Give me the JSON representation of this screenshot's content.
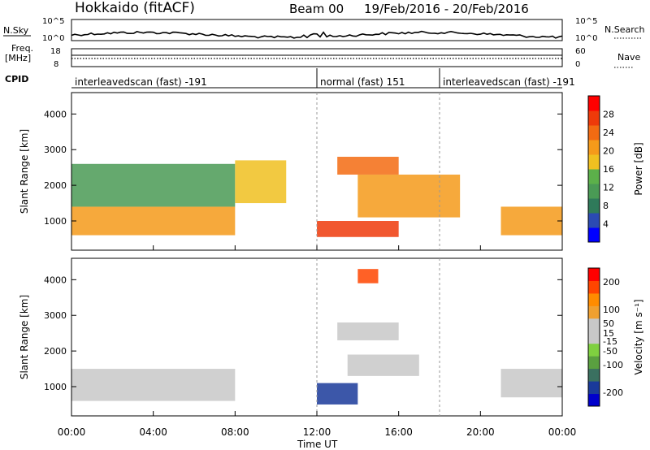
{
  "header": {
    "station": "Hokkaido (fitACF)",
    "beam": "Beam 00",
    "date_range": "19/Feb/2016 - 20/Feb/2016"
  },
  "top_panels": {
    "nsky_label": "N.Sky",
    "nsky_ticks": [
      "10^5",
      "10^0"
    ],
    "nsearch_label": "N.Search",
    "nsearch_ticks": [
      "10^5",
      "10^0"
    ],
    "freq_label": "Freq.",
    "freq_unit": "[MHz]",
    "freq_ticks": [
      "18",
      "8"
    ],
    "nave_label": "Nave",
    "nave_ticks": [
      "60",
      "0"
    ],
    "cpid_label": "CPID",
    "modes": [
      {
        "label": "interleavedscan (fast) -191",
        "start_hour": 0
      },
      {
        "label": "normal (fast) 151",
        "start_hour": 12
      },
      {
        "label": "interleavedscan (fast) -191",
        "start_hour": 18
      }
    ]
  },
  "colors": {
    "power_scale": [
      "#0000ff",
      "#2b4ab3",
      "#2f7a5a",
      "#4a9a55",
      "#5cb04a",
      "#f0c020",
      "#f59a1a",
      "#f36b12",
      "#ee3a0a",
      "#ff0000"
    ],
    "velocity_scale": [
      "#ff0000",
      "#ff4500",
      "#ff8c00",
      "#f0a030",
      "#c8c8c8",
      "#c8c8c8",
      "#7fd040",
      "#5aa040",
      "#3a7060",
      "#1a3a9a",
      "#0000cc"
    ]
  },
  "chart_data": [
    {
      "type": "heatmap",
      "xlabel": "Time UT",
      "ylabel": "Slant Range [km]",
      "x_ticks": [
        "00:00",
        "04:00",
        "08:00",
        "12:00",
        "16:00",
        "20:00",
        "00:00"
      ],
      "x_range_hours": [
        0,
        24
      ],
      "y_ticks": [
        1000,
        2000,
        3000,
        4000
      ],
      "ylim": [
        180,
        4600
      ],
      "colorbar": {
        "label": "Power [dB]",
        "ticks": [
          4,
          8,
          12,
          16,
          20,
          24,
          28
        ],
        "range": [
          0,
          32
        ]
      },
      "mode_boundaries_hours": [
        12,
        18
      ],
      "echo_regions": [
        {
          "t_start": 0,
          "t_end": 8,
          "range_low": 600,
          "range_high": 1400,
          "power_db": 22
        },
        {
          "t_start": 0,
          "t_end": 8,
          "range_low": 1400,
          "range_high": 2600,
          "power_db": 12
        },
        {
          "t_start": 8,
          "t_end": 10.5,
          "range_low": 1500,
          "range_high": 2700,
          "power_db": 17
        },
        {
          "t_start": 12,
          "t_end": 16,
          "range_low": 550,
          "range_high": 1000,
          "power_db": 28
        },
        {
          "t_start": 13,
          "t_end": 16,
          "range_low": 2300,
          "range_high": 2800,
          "power_db": 24
        },
        {
          "t_start": 14,
          "t_end": 19,
          "range_low": 1100,
          "range_high": 2300,
          "power_db": 20
        },
        {
          "t_start": 21,
          "t_end": 24,
          "range_low": 600,
          "range_high": 1400,
          "power_db": 22
        }
      ]
    },
    {
      "type": "heatmap",
      "xlabel": "Time UT",
      "ylabel": "Slant Range [km]",
      "x_ticks": [
        "00:00",
        "04:00",
        "08:00",
        "12:00",
        "16:00",
        "20:00",
        "00:00"
      ],
      "x_range_hours": [
        0,
        24
      ],
      "y_ticks": [
        1000,
        2000,
        3000,
        4000
      ],
      "ylim": [
        180,
        4600
      ],
      "colorbar": {
        "label": "Velocity [m s⁻¹]",
        "ticks": [
          200,
          100,
          50,
          15,
          -15,
          -50,
          -100,
          -200
        ],
        "range": [
          -250,
          250
        ]
      },
      "mode_boundaries_hours": [
        12,
        18
      ],
      "echo_regions": [
        {
          "t_start": 0,
          "t_end": 8,
          "range_low": 600,
          "range_high": 1500,
          "velocity": 0
        },
        {
          "t_start": 12,
          "t_end": 14,
          "range_low": 500,
          "range_high": 1100,
          "velocity": -180
        },
        {
          "t_start": 13.5,
          "t_end": 17,
          "range_low": 1300,
          "range_high": 1900,
          "velocity": 40
        },
        {
          "t_start": 13,
          "t_end": 16,
          "range_low": 2300,
          "range_high": 2800,
          "velocity": 0
        },
        {
          "t_start": 14,
          "t_end": 15,
          "range_low": 3900,
          "range_high": 4300,
          "velocity": 200
        },
        {
          "t_start": 21,
          "t_end": 24,
          "range_low": 700,
          "range_high": 1500,
          "velocity": 0
        }
      ]
    }
  ]
}
